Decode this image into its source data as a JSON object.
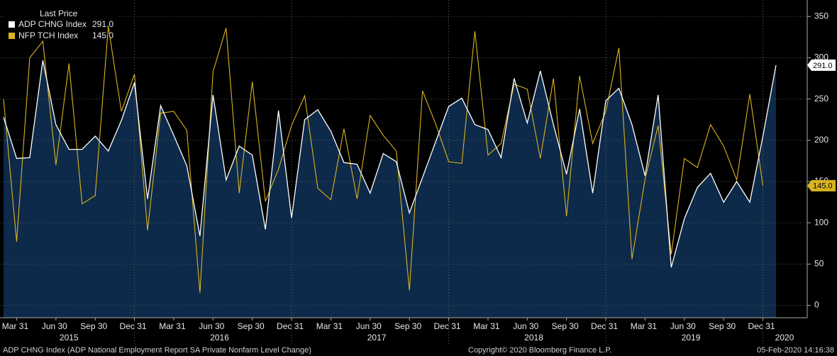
{
  "chart_data": {
    "type": "line",
    "legend_title": "Last Price",
    "categories": [
      null,
      "Mar 31",
      null,
      null,
      "Jun 30",
      null,
      null,
      "Sep 30",
      null,
      null,
      "Dec 31",
      null,
      null,
      "Mar 31",
      null,
      null,
      "Jun 30",
      null,
      null,
      "Sep 30",
      null,
      null,
      "Dec 31",
      null,
      null,
      "Mar 31",
      null,
      null,
      "Jun 30",
      null,
      null,
      "Sep 30",
      null,
      null,
      "Dec 31",
      null,
      null,
      "Mar 31",
      null,
      null,
      "Jun 30",
      null,
      null,
      "Sep 30",
      null,
      null,
      "Dec 31",
      null,
      null,
      "Mar 31",
      null,
      null,
      "Jun 30",
      null,
      null,
      "Sep 30",
      null,
      null,
      "Dec 31",
      null
    ],
    "years": [
      "2015",
      "2016",
      "2017",
      "2018",
      "2019",
      "2020"
    ],
    "series": [
      {
        "name": "ADP CHNG Index",
        "color": "#ffffff",
        "area_color": "#0e2a4a",
        "last_label": "291.0",
        "values": [
          228,
          178,
          179,
          297,
          219,
          189,
          189,
          205,
          187,
          224,
          270,
          129,
          242,
          206,
          169,
          84,
          255,
          152,
          193,
          182,
          92,
          236,
          106,
          225,
          237,
          211,
          173,
          171,
          136,
          184,
          174,
          112,
          155,
          198,
          241,
          251,
          219,
          213,
          179,
          275,
          221,
          284,
          219,
          159,
          238,
          136,
          248,
          263,
          219,
          157,
          255,
          46,
          105,
          143,
          160,
          125,
          150,
          125,
          205,
          291
        ]
      },
      {
        "name": "NFP TCH Index",
        "color": "#d9b41e",
        "last_label": "145.0",
        "values": [
          250,
          77,
          300,
          320,
          170,
          293,
          123,
          133,
          338,
          235,
          280,
          91,
          233,
          235,
          212,
          15,
          283,
          336,
          136,
          271,
          126,
          165,
          218,
          254,
          142,
          128,
          214,
          129,
          230,
          206,
          187,
          18,
          260,
          220,
          174,
          172,
          332,
          182,
          196,
          268,
          262,
          178,
          275,
          108,
          278,
          196,
          235,
          312,
          56,
          153,
          218,
          62,
          178,
          167,
          219,
          193,
          152,
          256,
          145,
          null
        ]
      }
    ],
    "ylim": [
      -15,
      370
    ],
    "yticks": [
      0,
      50,
      100,
      150,
      200,
      250,
      300,
      350
    ],
    "grid": true,
    "footer": {
      "description": "ADP CHNG Index (ADP National Employment Report SA Private Nonfarm Level Change)",
      "copyright": "Copyright© 2020 Bloomberg Finance L.P.",
      "timestamp": "05-Feb-2020 14:16:38"
    }
  }
}
